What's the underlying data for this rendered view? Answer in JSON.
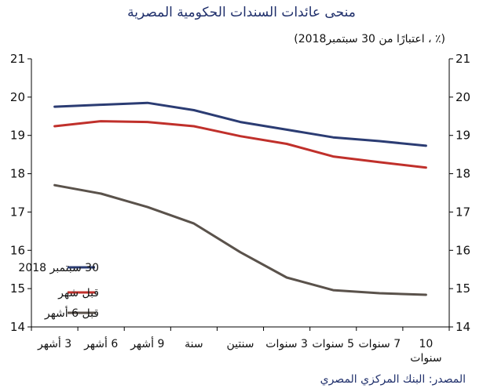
{
  "chart_data": {
    "type": "line",
    "title": "منحى عائدات السندات الحكومية المصرية",
    "subtitle": "(٪ ، اعتبارًا من 30 سبتمبر2018)",
    "categories": [
      "3 أشهر",
      "6 أشهر",
      "9 أشهر",
      "سنة",
      "سنتين",
      "3 سنوات",
      "5 سنوات",
      "7 سنوات",
      "10 سنوات"
    ],
    "category_lines": [
      [
        "3 أشهر"
      ],
      [
        "6 أشهر"
      ],
      [
        "9 أشهر"
      ],
      [
        "سنة"
      ],
      [
        "سنتين"
      ],
      [
        "3 سنوات"
      ],
      [
        "5 سنوات"
      ],
      [
        "7 سنوات"
      ],
      [
        "10",
        "سنوات"
      ]
    ],
    "y_ticks": [
      "14",
      "15",
      "16",
      "17",
      "18",
      "19",
      "20",
      "21"
    ],
    "ylim": [
      14,
      21
    ],
    "grid": false,
    "legend_position": "lower-left",
    "series": [
      {
        "name": "30 سبتمبر  2018",
        "color": "#2b3c73",
        "values": [
          19.75,
          19.8,
          19.85,
          19.66,
          19.35,
          19.15,
          18.95,
          18.85,
          18.73
        ]
      },
      {
        "name": "قبل شهر",
        "color": "#c0302b",
        "values": [
          19.24,
          19.37,
          19.35,
          19.24,
          18.98,
          18.78,
          18.45,
          18.3,
          18.16
        ]
      },
      {
        "name": "قبل 6 أشهر",
        "color": "#5a524b",
        "values": [
          17.7,
          17.48,
          17.13,
          16.7,
          15.95,
          15.29,
          14.96,
          14.88,
          14.84
        ]
      }
    ]
  },
  "source": "المصدر: البنك المركزي المصري"
}
